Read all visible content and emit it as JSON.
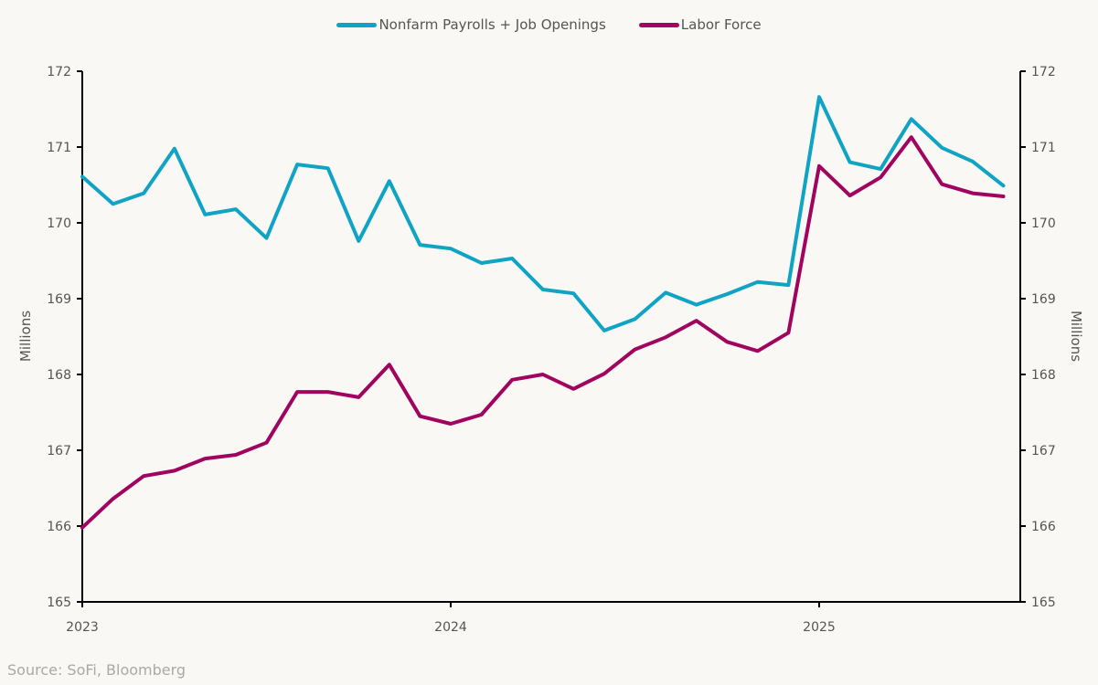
{
  "chart_data": {
    "type": "line",
    "title": "",
    "xlabel": "",
    "ylabel_left": "Millions",
    "ylabel_right": "Millions",
    "ylim": [
      165,
      172
    ],
    "yticks": [
      165,
      166,
      167,
      168,
      169,
      170,
      171,
      172
    ],
    "xlim": [
      0,
      30.5
    ],
    "xticks": [
      {
        "label": "2023",
        "month_index": 0
      },
      {
        "label": "2024",
        "month_index": 12
      },
      {
        "label": "2025",
        "month_index": 24
      }
    ],
    "x_description": "Monthly, Jan 2023 to Jul 2025 (month index 0 = Jan 2023)",
    "x": [
      0,
      1,
      2,
      3,
      4,
      5,
      6,
      7,
      8,
      9,
      10,
      11,
      12,
      13,
      14,
      15,
      16,
      17,
      18,
      19,
      20,
      21,
      22,
      23,
      24,
      25,
      26,
      27,
      28,
      29,
      30
    ],
    "grid": false,
    "legend_position": "top-center",
    "series": [
      {
        "name": "Nonfarm Payrolls + Job Openings",
        "color": "#0fa3c4",
        "values": [
          170.61,
          170.25,
          170.39,
          170.98,
          170.11,
          170.18,
          169.8,
          170.77,
          170.72,
          169.76,
          170.55,
          169.71,
          169.66,
          169.47,
          169.53,
          169.12,
          169.07,
          168.58,
          168.73,
          169.08,
          168.92,
          169.06,
          169.22,
          169.18,
          171.66,
          170.8,
          170.71,
          171.37,
          170.99,
          170.81,
          170.49
        ]
      },
      {
        "name": "Labor Force",
        "color": "#a0045f",
        "values": [
          165.98,
          166.36,
          166.66,
          166.73,
          166.89,
          166.94,
          167.1,
          167.77,
          167.77,
          167.7,
          168.13,
          167.45,
          167.35,
          167.47,
          167.93,
          168.0,
          167.81,
          168.01,
          168.33,
          168.49,
          168.71,
          168.43,
          168.31,
          168.55,
          170.75,
          170.36,
          170.6,
          171.13,
          170.51,
          170.39,
          170.35
        ]
      }
    ]
  },
  "source": "Source: SoFi, Bloomberg"
}
